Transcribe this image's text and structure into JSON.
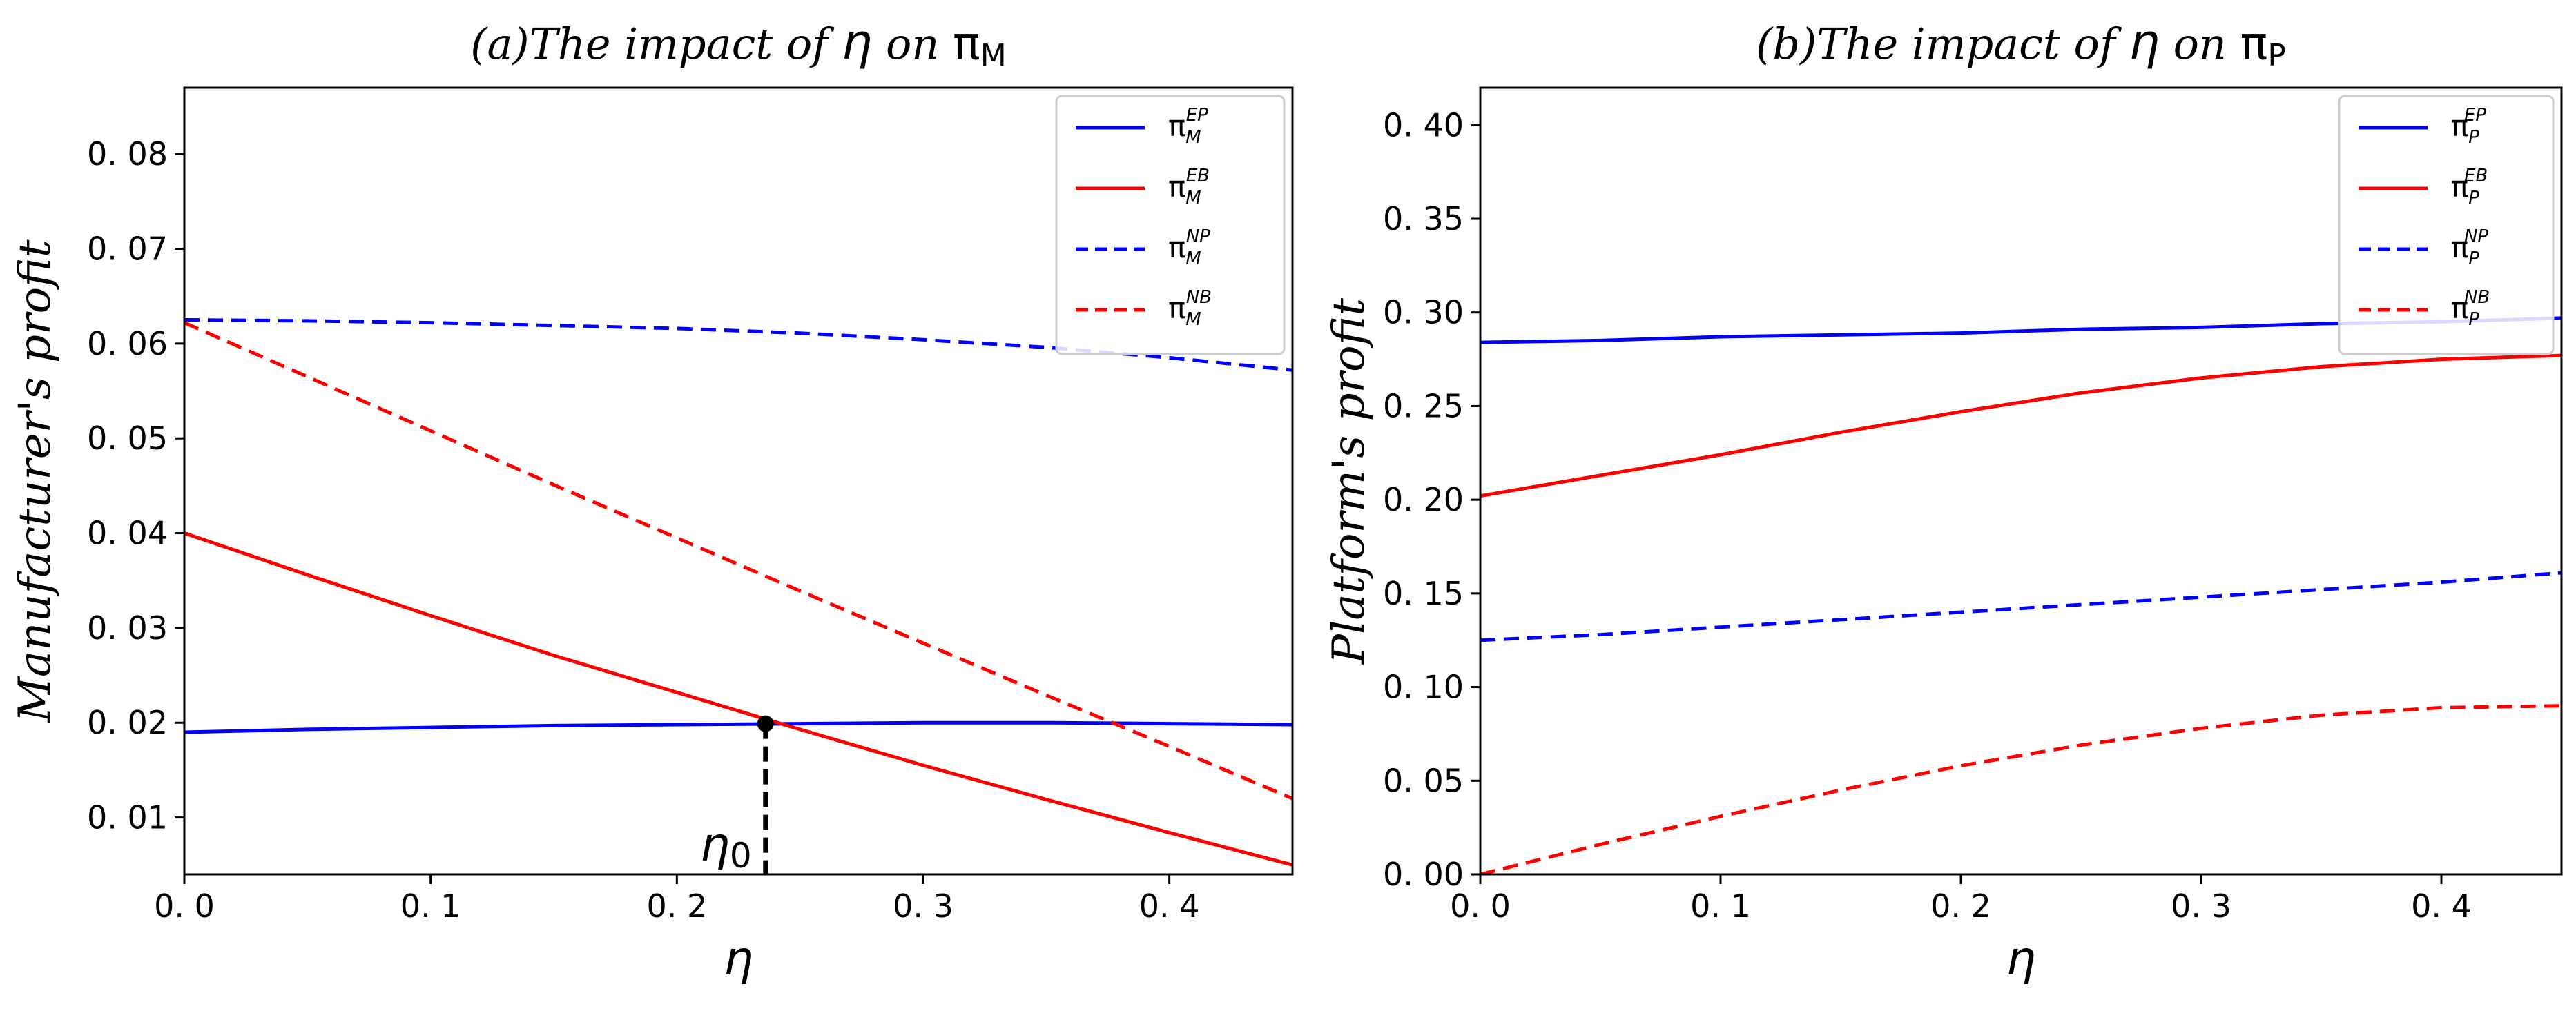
{
  "chart_data": [
    {
      "type": "line",
      "title": "(a)The impact of η on πM",
      "title_main": "(a)The impact of ",
      "title_sym": "η",
      "title_mid": " on ",
      "title_pi": "π",
      "title_sub": "M",
      "xlabel": "η",
      "ylabel": "Manufacturer's profit",
      "xlim": [
        0,
        0.45
      ],
      "ylim": [
        0.004,
        0.087
      ],
      "xticks": [
        0.0,
        0.1,
        0.2,
        0.3,
        0.4
      ],
      "xtick_labels": [
        "0. 0",
        "0. 1",
        "0. 2",
        "0. 3",
        "0. 4"
      ],
      "yticks": [
        0.01,
        0.02,
        0.03,
        0.04,
        0.05,
        0.06,
        0.07,
        0.08
      ],
      "ytick_labels": [
        "0. 01",
        "0. 02",
        "0. 03",
        "0. 04",
        "0. 05",
        "0. 06",
        "0. 07",
        "0. 08"
      ],
      "legend_position": "top-right",
      "series": [
        {
          "name": "πM EP",
          "label_pi": "π",
          "label_sub": "M",
          "label_sup": "EP",
          "color": "#0000ff",
          "dash": "solid",
          "x": [
            0,
            0.05,
            0.1,
            0.15,
            0.2,
            0.25,
            0.3,
            0.35,
            0.4,
            0.45
          ],
          "y": [
            0.019,
            0.0193,
            0.0195,
            0.0197,
            0.0198,
            0.0199,
            0.02,
            0.02,
            0.0199,
            0.0198
          ]
        },
        {
          "name": "πM EB",
          "label_pi": "π",
          "label_sub": "M",
          "label_sup": "EB",
          "color": "#ff0000",
          "dash": "solid",
          "x": [
            0,
            0.05,
            0.1,
            0.15,
            0.2,
            0.25,
            0.3,
            0.35,
            0.4,
            0.45
          ],
          "y": [
            0.04,
            0.0356,
            0.0313,
            0.0271,
            0.0232,
            0.0193,
            0.0155,
            0.0119,
            0.0084,
            0.005
          ]
        },
        {
          "name": "πM NP",
          "label_pi": "π",
          "label_sub": "M",
          "label_sup": "NP",
          "color": "#0000ff",
          "dash": "dashed",
          "x": [
            0,
            0.05,
            0.1,
            0.15,
            0.2,
            0.25,
            0.3,
            0.35,
            0.4,
            0.45
          ],
          "y": [
            0.0625,
            0.0624,
            0.0622,
            0.0619,
            0.0616,
            0.0611,
            0.0604,
            0.0596,
            0.0585,
            0.0572
          ]
        },
        {
          "name": "πM NB",
          "label_pi": "π",
          "label_sub": "M",
          "label_sup": "NB",
          "color": "#ff0000",
          "dash": "dashed",
          "x": [
            0,
            0.05,
            0.1,
            0.15,
            0.2,
            0.25,
            0.3,
            0.35,
            0.4,
            0.45
          ],
          "y": [
            0.0622,
            0.0565,
            0.0508,
            0.0451,
            0.0395,
            0.0339,
            0.0284,
            0.0229,
            0.0175,
            0.012
          ]
        }
      ],
      "annotation": {
        "label": "η",
        "label_sub": "0",
        "x": 0.236,
        "y": 0.0199
      }
    },
    {
      "type": "line",
      "title": "(b)The impact of η on πP",
      "title_main": "(b)The impact of ",
      "title_sym": "η",
      "title_mid": " on ",
      "title_pi": "π",
      "title_sub": "P",
      "xlabel": "η",
      "ylabel": "Platform's profit",
      "xlim": [
        0,
        0.45
      ],
      "ylim": [
        0,
        0.42
      ],
      "xticks": [
        0.0,
        0.1,
        0.2,
        0.3,
        0.4
      ],
      "xtick_labels": [
        "0. 0",
        "0. 1",
        "0. 2",
        "0. 3",
        "0. 4"
      ],
      "yticks": [
        0.0,
        0.05,
        0.1,
        0.15,
        0.2,
        0.25,
        0.3,
        0.35,
        0.4
      ],
      "ytick_labels": [
        "0. 00",
        "0. 05",
        "0. 10",
        "0. 15",
        "0. 20",
        "0. 25",
        "0. 30",
        "0. 35",
        "0. 40"
      ],
      "legend_position": "top-right",
      "series": [
        {
          "name": "πP EP",
          "label_pi": "π",
          "label_sub": "P",
          "label_sup": "EP",
          "color": "#0000ff",
          "dash": "solid",
          "x": [
            0,
            0.05,
            0.1,
            0.15,
            0.2,
            0.25,
            0.3,
            0.35,
            0.4,
            0.45
          ],
          "y": [
            0.284,
            0.285,
            0.287,
            0.288,
            0.289,
            0.291,
            0.292,
            0.294,
            0.295,
            0.297
          ]
        },
        {
          "name": "πP EB",
          "label_pi": "π",
          "label_sub": "P",
          "label_sup": "EB",
          "color": "#ff0000",
          "dash": "solid",
          "x": [
            0,
            0.05,
            0.1,
            0.15,
            0.2,
            0.25,
            0.3,
            0.35,
            0.4,
            0.45
          ],
          "y": [
            0.202,
            0.213,
            0.224,
            0.236,
            0.247,
            0.257,
            0.265,
            0.271,
            0.275,
            0.277
          ]
        },
        {
          "name": "πP NP",
          "label_pi": "π",
          "label_sub": "P",
          "label_sup": "NP",
          "color": "#0000ff",
          "dash": "dashed",
          "x": [
            0,
            0.05,
            0.1,
            0.15,
            0.2,
            0.25,
            0.3,
            0.35,
            0.4,
            0.45
          ],
          "y": [
            0.125,
            0.128,
            0.132,
            0.136,
            0.14,
            0.144,
            0.148,
            0.152,
            0.156,
            0.161
          ]
        },
        {
          "name": "πP NB",
          "label_pi": "π",
          "label_sub": "P",
          "label_sup": "NB",
          "color": "#ff0000",
          "dash": "dashed",
          "x": [
            0,
            0.05,
            0.1,
            0.15,
            0.2,
            0.25,
            0.3,
            0.35,
            0.4,
            0.45
          ],
          "y": [
            0.0,
            0.016,
            0.031,
            0.045,
            0.058,
            0.069,
            0.078,
            0.085,
            0.089,
            0.09
          ]
        }
      ]
    }
  ]
}
